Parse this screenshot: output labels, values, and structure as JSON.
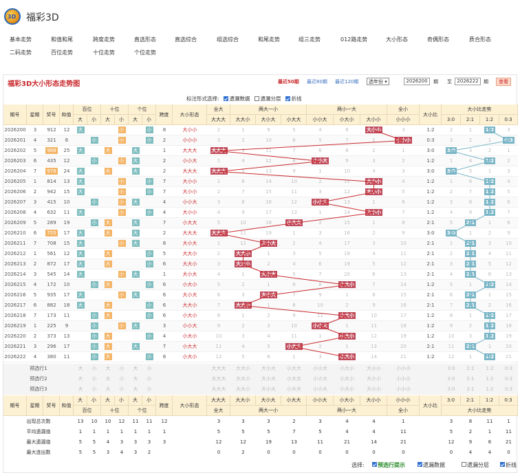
{
  "site": {
    "logo": "3D",
    "title": "福彩3D"
  },
  "nav": [
    "基本走势",
    "和值和尾",
    "跨度走势",
    "直选形态",
    "直选综合",
    "组选综合",
    "和尾走势",
    "组三走势",
    "012路走势",
    "大小形态",
    "奇偶形态",
    "质合形态",
    "二码走势",
    "百位走势",
    "十位走势",
    "个位走势"
  ],
  "panel": {
    "title": "福彩3D大小形态走势图",
    "recent": [
      "最近50期",
      "最近80期",
      "最近120期"
    ],
    "year_select": "选年份",
    "from": "2026200",
    "to": "2026222",
    "period_label": "期",
    "to_label": "至",
    "query": "查看"
  },
  "options": {
    "label": "标注形式选择:",
    "items": [
      {
        "label": "遗漏数据",
        "on": true
      },
      {
        "label": "遗漏分层",
        "on": false
      },
      {
        "label": "折线",
        "on": true
      }
    ]
  },
  "headers": {
    "issue": "期号",
    "weekday": "星期",
    "prize": "奖号",
    "sum": "和值",
    "bai": "百位",
    "shi": "十位",
    "ge": "个位",
    "da": "大",
    "xiao": "小",
    "span": "跨度",
    "shape": "大小形态",
    "all_big": "全大",
    "two_big_one_small": "两大一小",
    "two_small_one_big": "两小一大",
    "all_small": "全小",
    "ratio": "大小比",
    "ratio_trend": "大小比走势",
    "ddd": "大大大",
    "dds": "大大小",
    "dsd": "大小大",
    "sdd": "小大大",
    "sss": "小小小",
    "ssd": "小小大",
    "sds": "小大小",
    "dss": "大小小",
    "r30": "3:0",
    "r21": "2:1",
    "r12": "1:2",
    "r03": "0:3"
  },
  "rows": [
    {
      "issue": "2026200",
      "week": "3",
      "num": "912",
      "sum": "12",
      "b": "大",
      "s": "小",
      "g": "小",
      "span": "8",
      "shape": "大小小",
      "pat": "dss",
      "ratio": "1:2",
      "miss": [
        2,
        1,
        9,
        5,
        4,
        6,
        0,
        3
      ],
      "rmiss": [
        2,
        1,
        0,
        3
      ]
    },
    {
      "issue": "2026201",
      "week": "4",
      "num": "321",
      "sum": "6",
      "b": "小",
      "s": "小",
      "g": "小",
      "span": "2",
      "shape": "小小小",
      "pat": "sss",
      "ratio": "0:3",
      "miss": [
        3,
        2,
        10,
        6,
        5,
        7,
        1,
        0
      ],
      "rmiss": [
        3,
        2,
        1,
        0
      ]
    },
    {
      "issue": "2026202",
      "week": "5",
      "num": "988",
      "sum": "25",
      "b": "大",
      "s": "大",
      "g": "大",
      "span": "1",
      "shape": "大大大",
      "pat": "ddd",
      "ratio": "3:0",
      "miss": [
        0,
        3,
        11,
        7,
        6,
        8,
        2,
        1
      ],
      "rmiss": [
        0,
        3,
        2,
        1
      ]
    },
    {
      "issue": "2026203",
      "week": "6",
      "num": "435",
      "sum": "12",
      "b": "小",
      "s": "小",
      "g": "大",
      "span": "2",
      "shape": "小小大",
      "pat": "ssd",
      "ratio": "1:2",
      "miss": [
        1,
        4,
        12,
        8,
        0,
        9,
        3,
        2
      ],
      "rmiss": [
        1,
        4,
        0,
        2
      ]
    },
    {
      "issue": "2026204",
      "week": "7",
      "num": "978",
      "sum": "24",
      "b": "大",
      "s": "大",
      "g": "大",
      "span": "2",
      "shape": "大大大",
      "pat": "ddd",
      "ratio": "3:0",
      "miss": [
        0,
        5,
        13,
        9,
        1,
        10,
        4,
        3
      ],
      "rmiss": [
        0,
        5,
        1,
        3
      ]
    },
    {
      "issue": "2026205",
      "week": "1",
      "num": "814",
      "sum": "13",
      "b": "大",
      "s": "小",
      "g": "小",
      "span": "7",
      "shape": "大小小",
      "pat": "dss",
      "ratio": "1:2",
      "miss": [
        1,
        6,
        14,
        10,
        2,
        11,
        0,
        4
      ],
      "rmiss": [
        1,
        6,
        0,
        4
      ]
    },
    {
      "issue": "2026206",
      "week": "2",
      "num": "942",
      "sum": "15",
      "b": "大",
      "s": "小",
      "g": "小",
      "span": "7",
      "shape": "大小小",
      "pat": "dss",
      "ratio": "1:2",
      "miss": [
        2,
        7,
        15,
        11,
        3,
        12,
        0,
        5
      ],
      "rmiss": [
        2,
        7,
        0,
        5
      ]
    },
    {
      "issue": "2026207",
      "week": "3",
      "num": "415",
      "sum": "10",
      "b": "小",
      "s": "小",
      "g": "大",
      "span": "4",
      "shape": "小小大",
      "pat": "ssd",
      "ratio": "1:2",
      "miss": [
        3,
        8,
        16,
        12,
        0,
        13,
        1,
        6
      ],
      "rmiss": [
        3,
        8,
        0,
        6
      ]
    },
    {
      "issue": "2026208",
      "week": "4",
      "num": "632",
      "sum": "11",
      "b": "大",
      "s": "小",
      "g": "小",
      "span": "4",
      "shape": "大小小",
      "pat": "dss",
      "ratio": "1:2",
      "miss": [
        4,
        9,
        17,
        13,
        1,
        14,
        0,
        7
      ],
      "rmiss": [
        4,
        9,
        0,
        7
      ]
    },
    {
      "issue": "2026209",
      "week": "5",
      "num": "289",
      "sum": "19",
      "b": "小",
      "s": "大",
      "g": "大",
      "span": "7",
      "shape": "小大大",
      "pat": "sdd",
      "ratio": "2:1",
      "miss": [
        5,
        10,
        18,
        0,
        2,
        15,
        1,
        8
      ],
      "rmiss": [
        5,
        0,
        1,
        8
      ]
    },
    {
      "issue": "2026210",
      "week": "6",
      "num": "755",
      "sum": "17",
      "b": "大",
      "s": "大",
      "g": "大",
      "span": "2",
      "shape": "大大大",
      "pat": "ddd",
      "ratio": "3:0",
      "miss": [
        0,
        11,
        19,
        1,
        3,
        16,
        2,
        9
      ],
      "rmiss": [
        0,
        1,
        2,
        9
      ]
    },
    {
      "issue": "2026211",
      "week": "7",
      "num": "708",
      "sum": "15",
      "b": "大",
      "s": "小",
      "g": "大",
      "span": "8",
      "shape": "大小大",
      "pat": "dsd",
      "ratio": "2:1",
      "miss": [
        1,
        12,
        0,
        2,
        4,
        17,
        3,
        10
      ],
      "rmiss": [
        1,
        0,
        3,
        10
      ]
    },
    {
      "issue": "2026212",
      "week": "1",
      "num": "561",
      "sum": "12",
      "b": "大",
      "s": "大",
      "g": "小",
      "span": "5",
      "shape": "大大小",
      "pat": "dds",
      "ratio": "2:1",
      "miss": [
        2,
        0,
        1,
        3,
        5,
        18,
        4,
        11
      ],
      "rmiss": [
        2,
        0,
        4,
        11
      ]
    },
    {
      "issue": "2026213",
      "week": "2",
      "num": "872",
      "sum": "17",
      "b": "大",
      "s": "大",
      "g": "小",
      "span": "6",
      "shape": "大大小",
      "pat": "dds",
      "ratio": "2:1",
      "miss": [
        3,
        0,
        2,
        4,
        6,
        19,
        5,
        12
      ],
      "rmiss": [
        3,
        0,
        5,
        12
      ]
    },
    {
      "issue": "2026214",
      "week": "3",
      "num": "545",
      "sum": "14",
      "b": "大",
      "s": "小",
      "g": "大",
      "span": "1",
      "shape": "大小大",
      "pat": "dsd",
      "ratio": "2:1",
      "miss": [
        4,
        1,
        0,
        5,
        7,
        20,
        6,
        13
      ],
      "rmiss": [
        4,
        0,
        6,
        13
      ]
    },
    {
      "issue": "2026215",
      "week": "4",
      "num": "172",
      "sum": "10",
      "b": "小",
      "s": "大",
      "g": "小",
      "span": "6",
      "shape": "小大小",
      "pat": "sds",
      "ratio": "1:2",
      "miss": [
        5,
        2,
        1,
        6,
        8,
        0,
        7,
        14
      ],
      "rmiss": [
        5,
        1,
        0,
        14
      ]
    },
    {
      "issue": "2026216",
      "week": "5",
      "num": "935",
      "sum": "17",
      "b": "大",
      "s": "小",
      "g": "大",
      "span": "6",
      "shape": "大小大",
      "pat": "dsd",
      "ratio": "2:1",
      "miss": [
        6,
        3,
        0,
        7,
        9,
        1,
        8,
        15
      ],
      "rmiss": [
        6,
        0,
        1,
        15
      ]
    },
    {
      "issue": "2026217",
      "week": "6",
      "num": "882",
      "sum": "18",
      "b": "大",
      "s": "大",
      "g": "小",
      "span": "6",
      "shape": "大大小",
      "pat": "dds",
      "ratio": "2:1",
      "miss": [
        7,
        0,
        1,
        8,
        10,
        2,
        9,
        16
      ],
      "rmiss": [
        7,
        0,
        2,
        16
      ]
    },
    {
      "issue": "2026218",
      "week": "7",
      "num": "173",
      "sum": "11",
      "b": "小",
      "s": "大",
      "g": "小",
      "span": "6",
      "shape": "小大小",
      "pat": "sds",
      "ratio": "1:2",
      "miss": [
        8,
        1,
        2,
        9,
        11,
        0,
        10,
        17
      ],
      "rmiss": [
        8,
        1,
        0,
        17
      ]
    },
    {
      "issue": "2026219",
      "week": "1",
      "num": "225",
      "sum": "9",
      "b": "小",
      "s": "小",
      "g": "大",
      "span": "3",
      "shape": "小小大",
      "pat": "ssd",
      "ratio": "1:2",
      "miss": [
        9,
        2,
        3,
        10,
        0,
        1,
        11,
        18
      ],
      "rmiss": [
        9,
        2,
        0,
        18
      ]
    },
    {
      "issue": "2026220",
      "week": "2",
      "num": "373",
      "sum": "13",
      "b": "小",
      "s": "大",
      "g": "小",
      "span": "4",
      "shape": "小大小",
      "pat": "sds",
      "ratio": "1:2",
      "miss": [
        10,
        3,
        4,
        11,
        1,
        0,
        12,
        19
      ],
      "rmiss": [
        10,
        3,
        0,
        19
      ]
    },
    {
      "issue": "2026221",
      "week": "3",
      "num": "296",
      "sum": "17",
      "b": "小",
      "s": "大",
      "g": "大",
      "span": "7",
      "shape": "小大大",
      "pat": "sdd",
      "ratio": "2:1",
      "miss": [
        11,
        4,
        5,
        0,
        2,
        1,
        13,
        20
      ],
      "rmiss": [
        11,
        0,
        1,
        20
      ]
    },
    {
      "issue": "2026222",
      "week": "4",
      "num": "380",
      "sum": "11",
      "b": "小",
      "s": "大",
      "g": "小",
      "span": "8",
      "shape": "小大小",
      "pat": "sds",
      "ratio": "1:2",
      "miss": [
        12,
        5,
        6,
        1,
        3,
        0,
        14,
        21
      ],
      "rmiss": [
        12,
        1,
        0,
        21
      ]
    }
  ],
  "predict": [
    "预选行1",
    "预选行2",
    "预选行3"
  ],
  "stats": [
    {
      "label": "出现总次数",
      "pos": [
        13,
        10,
        10,
        12,
        11,
        11,
        12
      ],
      "miss": [
        3,
        3,
        3,
        2,
        3,
        4,
        4,
        1
      ],
      "rmiss": [
        3,
        8,
        11,
        1
      ]
    },
    {
      "label": "平均遗漏值",
      "pos": [
        1,
        1,
        1,
        1,
        1,
        1,
        1
      ],
      "miss": [
        5,
        5,
        5,
        7,
        5,
        4,
        4,
        11
      ],
      "rmiss": [
        5,
        2,
        1,
        11
      ]
    },
    {
      "label": "最大遗漏值",
      "pos": [
        5,
        5,
        4,
        3,
        3,
        3,
        3
      ],
      "miss": [
        12,
        12,
        19,
        13,
        11,
        21,
        14,
        21
      ],
      "rmiss": [
        12,
        9,
        6,
        21
      ]
    },
    {
      "label": "最大连出数",
      "pos": [
        5,
        5,
        3,
        4,
        3,
        2,
        ""
      ],
      "miss": [
        0,
        2,
        0,
        0,
        0,
        0,
        0,
        0
      ],
      "rmiss": [
        0,
        4,
        4,
        0
      ]
    }
  ],
  "bottom": {
    "label": "选择:",
    "items": [
      {
        "label": "预选行提示",
        "on": true,
        "color": "#2a8a2a"
      },
      {
        "label": "遗漏数据",
        "on": true
      },
      {
        "label": "遗漏分层",
        "on": false
      },
      {
        "label": "折线",
        "on": true
      }
    ]
  },
  "colors": {
    "brand": "#c8282c",
    "header": "#fdf1d4",
    "line": "#c8282c",
    "ratio_line": "#7bb6c7"
  }
}
